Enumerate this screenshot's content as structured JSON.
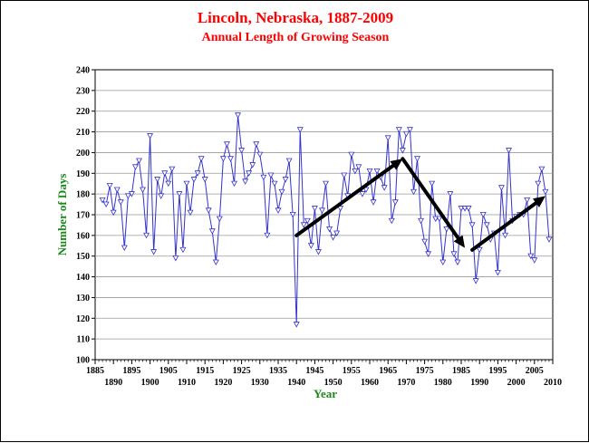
{
  "chart_data": {
    "type": "line",
    "title": "Lincoln, Nebraska, 1887-2009",
    "subtitle": "Annual Length of Growing Season",
    "xlabel": "Year",
    "ylabel": "Number of Days",
    "xlim": [
      1885,
      2010
    ],
    "ylim": [
      100,
      240
    ],
    "grid": true,
    "legend": "none",
    "x_ticks": [
      1885,
      1890,
      1895,
      1900,
      1905,
      1910,
      1915,
      1920,
      1925,
      1930,
      1935,
      1940,
      1945,
      1950,
      1955,
      1960,
      1965,
      1970,
      1975,
      1980,
      1985,
      1990,
      1995,
      2000,
      2005,
      2010
    ],
    "y_ticks": [
      100,
      110,
      120,
      130,
      140,
      150,
      160,
      170,
      180,
      190,
      200,
      210,
      220,
      230,
      240
    ],
    "series": [
      {
        "x": [
          1887,
          1888,
          1889,
          1890,
          1891,
          1892,
          1893,
          1894,
          1895,
          1896,
          1897,
          1898,
          1899,
          1900,
          1901,
          1902,
          1903,
          1904,
          1905,
          1906,
          1907,
          1908,
          1909,
          1910,
          1911,
          1912,
          1913,
          1914,
          1915,
          1916,
          1917,
          1918,
          1919,
          1920,
          1921,
          1922,
          1923,
          1924,
          1925,
          1926,
          1927,
          1928,
          1929,
          1930,
          1931,
          1932,
          1933,
          1934,
          1935,
          1936,
          1937,
          1938,
          1939,
          1940,
          1941,
          1942,
          1943,
          1944,
          1945,
          1946,
          1947,
          1948,
          1949,
          1950,
          1951,
          1952,
          1953,
          1954,
          1955,
          1956,
          1957,
          1958,
          1959,
          1960,
          1961,
          1962,
          1963,
          1964,
          1965,
          1966,
          1967,
          1968,
          1969,
          1970,
          1971,
          1972,
          1973,
          1974,
          1975,
          1976,
          1977,
          1978,
          1979,
          1980,
          1981,
          1982,
          1983,
          1984,
          1985,
          1986,
          1987,
          1988,
          1989,
          1990,
          1991,
          1992,
          1993,
          1994,
          1995,
          1996,
          1997,
          1998,
          1999,
          2000,
          2001,
          2002,
          2003,
          2004,
          2005,
          2006,
          2007,
          2008,
          2009
        ],
        "values": [
          177,
          175,
          184,
          171,
          182,
          176,
          154,
          179,
          180,
          193,
          196,
          182,
          160,
          208,
          152,
          187,
          179,
          190,
          185,
          192,
          149,
          180,
          153,
          185,
          171,
          187,
          190,
          197,
          187,
          172,
          162,
          147,
          168,
          197,
          204,
          197,
          185,
          218,
          201,
          186,
          190,
          194,
          204,
          199,
          188,
          160,
          189,
          185,
          172,
          181,
          187,
          196,
          170,
          117,
          211,
          165,
          167,
          155,
          173,
          152,
          172,
          185,
          163,
          159,
          161,
          173,
          189,
          179,
          199,
          191,
          193,
          180,
          182,
          191,
          176,
          191,
          188,
          183,
          207,
          167,
          176,
          211,
          201,
          209,
          211,
          181,
          197,
          167,
          157,
          151,
          185,
          168,
          168,
          147,
          163,
          180,
          151,
          147,
          173,
          173,
          173,
          165,
          138,
          153,
          170,
          165,
          158,
          161,
          142,
          183,
          160,
          201,
          167,
          169,
          170,
          170,
          177,
          150,
          148,
          185,
          192,
          181,
          158
        ]
      }
    ],
    "annotations": {
      "trend_arrows": [
        {
          "x_start": 1940,
          "y_start": 160,
          "x_end": 1969,
          "y_end": 197
        },
        {
          "x_start": 1969,
          "y_start": 197,
          "x_end": 1986,
          "y_end": 154
        },
        {
          "x_start": 1988,
          "y_start": 153,
          "x_end": 2008,
          "y_end": 179
        }
      ]
    },
    "colors": {
      "title": "#ff0000",
      "axis_label": "#1a8a1a",
      "series": "#3333cc",
      "grid": "#999999",
      "arrow": "#000000"
    }
  }
}
